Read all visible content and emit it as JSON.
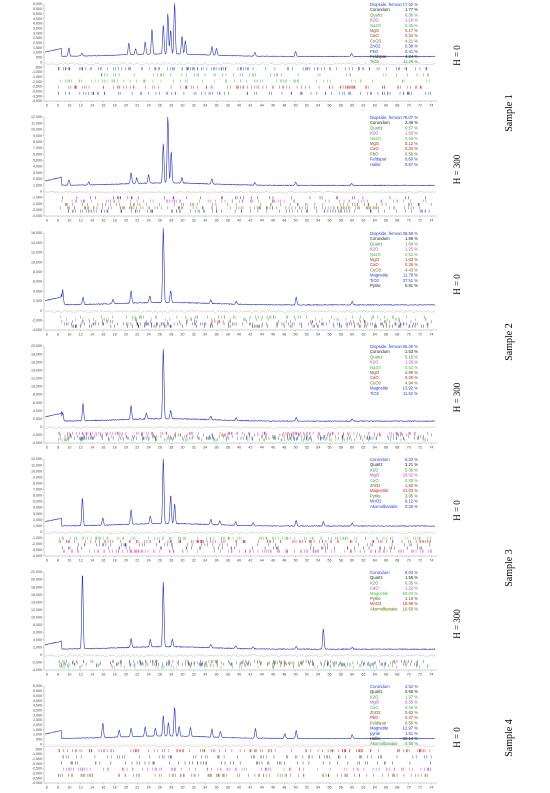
{
  "figure": {
    "sample_labels": [
      "Sample 1",
      "Sample 2",
      "Sample 3",
      "Sample 4"
    ],
    "h_labels": [
      "H = 0",
      "H = 300",
      "H = 0",
      "H = 300",
      "H = 0",
      "H = 300",
      "H = 0"
    ]
  },
  "colors": {
    "pattern": "#2233cc",
    "axis": "#777777",
    "phase_palette": [
      "#1f3fd6",
      "#222222",
      "#2e9e2e",
      "#d62ad6",
      "#3cc03c",
      "#7a4a1a",
      "#cc2222",
      "#6a6a00",
      "#2233cc"
    ]
  },
  "chart_data": [
    {
      "type": "line",
      "h": "H = 0",
      "sample": "Sample 1",
      "ytick_labels": [
        "6,000",
        "5,500",
        "5,000",
        "4,500",
        "4,000",
        "3,500",
        "3,000",
        "2,500",
        "2,000",
        "1,500",
        "1,000",
        "500",
        "0",
        "-500",
        "-1,000",
        "-1,500",
        "-2,000",
        "-2,500",
        "-3,000",
        "-3,500",
        "-4,000"
      ],
      "xtick_labels": [
        "6",
        "8",
        "10",
        "12",
        "14",
        "16",
        "18",
        "20",
        "22",
        "24",
        "26",
        "28",
        "30",
        "32",
        "34",
        "36",
        "38",
        "40",
        "42",
        "44",
        "46",
        "48",
        "50",
        "52",
        "54",
        "56",
        "58",
        "60",
        "62",
        "64",
        "66",
        "68",
        "70",
        "72",
        "74"
      ],
      "peaks_x": [
        9.9,
        12.2,
        20.5,
        21.7,
        23.4,
        24.6,
        26.6,
        27.4,
        27.9,
        28.6,
        29.9,
        30.5,
        35.2,
        36.0,
        42.8,
        50.0,
        59.9
      ],
      "peaks_y": [
        900,
        300,
        1200,
        600,
        1300,
        2600,
        3000,
        4200,
        2500,
        5300,
        1900,
        1400,
        900,
        700,
        400,
        500,
        300
      ],
      "legend": [
        [
          "Diopside, ferroan",
          "17.52 %"
        ],
        [
          "Corundum",
          "1.77 %"
        ],
        [
          "Quartz",
          "6.36 %"
        ],
        [
          "K2O",
          "1.16 %"
        ],
        [
          "Na2O",
          "0.45 %"
        ],
        [
          "MgO",
          "0.17 %"
        ],
        [
          "CaO",
          "0.34 %"
        ],
        [
          "CuO3",
          "4.21 %"
        ],
        [
          "ZnO2",
          "0.39 %"
        ],
        [
          "PbO",
          "0.41 %"
        ],
        [
          "Feldspar",
          "4.24 %"
        ],
        [
          "TiO2",
          "11.26 %"
        ]
      ]
    },
    {
      "type": "line",
      "h": "H = 300",
      "sample": "Sample 1",
      "ytick_labels": [
        "12,000",
        "11,000",
        "10,000",
        "9,000",
        "8,000",
        "7,000",
        "6,000",
        "5,000",
        "4,000",
        "3,000",
        "2,000",
        "1,000",
        "0",
        "-1,000",
        "-2,000",
        "-3,000",
        "-4,000"
      ],
      "xtick_labels": [
        "6",
        "8",
        "10",
        "12",
        "14",
        "16",
        "18",
        "20",
        "22",
        "24",
        "26",
        "28",
        "30",
        "32",
        "34",
        "36",
        "38",
        "40",
        "42",
        "44",
        "46",
        "48",
        "50",
        "52",
        "54",
        "56",
        "58",
        "60",
        "62",
        "64",
        "66",
        "68",
        "70",
        "72",
        "74"
      ],
      "peaks_x": [
        9.9,
        13.4,
        20.9,
        21.9,
        24.0,
        26.6,
        27.4,
        28.0,
        29.9,
        35.2,
        42.8,
        50.0,
        59.9
      ],
      "peaks_y": [
        900,
        500,
        1800,
        900,
        1400,
        6400,
        10800,
        5100,
        900,
        800,
        400,
        500,
        300
      ],
      "legend": [
        [
          "Diopside, ferroan",
          "78.07 %"
        ],
        [
          "Corundum",
          "2.48 %"
        ],
        [
          "Quartz",
          "0.57 %"
        ],
        [
          "K2O",
          "1.93 %"
        ],
        [
          "Na2O",
          "0.55 %"
        ],
        [
          "MgO",
          "0.12 %"
        ],
        [
          "CaO",
          "0.33 %"
        ],
        [
          "PbO",
          "0.56 %"
        ],
        [
          "Feldspar",
          "0.60 %"
        ],
        [
          "Halite",
          "0.57 %"
        ]
      ]
    },
    {
      "type": "line",
      "h": "H = 0",
      "sample": "Sample 2",
      "ytick_labels": [
        "16,000",
        "14,000",
        "12,000",
        "10,000",
        "8,000",
        "6,000",
        "4,000",
        "2,000",
        "0",
        "-2,000",
        "-4,000"
      ],
      "xtick_labels": [
        "6",
        "8",
        "10",
        "12",
        "14",
        "16",
        "18",
        "20",
        "22",
        "24",
        "26",
        "28",
        "30",
        "32",
        "34",
        "36",
        "38",
        "40",
        "42",
        "44",
        "46",
        "48",
        "50",
        "52",
        "54",
        "56",
        "58",
        "60",
        "62",
        "64",
        "66",
        "68",
        "70",
        "72",
        "74"
      ],
      "peaks_x": [
        8.8,
        12.4,
        17.7,
        20.9,
        24.2,
        26.6,
        27.9,
        35.0,
        39.5,
        50.1,
        60.0
      ],
      "peaks_y": [
        3200,
        1500,
        900,
        2600,
        1400,
        15500,
        2400,
        700,
        600,
        1600,
        700
      ],
      "legend": [
        [
          "Diopside, ferroan",
          "38.58 %"
        ],
        [
          "Corundum",
          "1.88 %"
        ],
        [
          "Quartz",
          "1.69 %"
        ],
        [
          "K2O",
          "1.25 %"
        ],
        [
          "Na2O",
          "0.52 %"
        ],
        [
          "MgO",
          "1.03 %"
        ],
        [
          "CaO",
          "0.26 %"
        ],
        [
          "CuO3",
          "4.43 %"
        ],
        [
          "Magnetite",
          "11.78 %"
        ],
        [
          "TiO2",
          "37.51 %"
        ],
        [
          "Pyrite",
          "0.81 %"
        ]
      ]
    },
    {
      "type": "line",
      "h": "H = 300",
      "sample": "Sample 2",
      "ytick_labels": [
        "20,000",
        "18,000",
        "16,000",
        "14,000",
        "12,000",
        "10,000",
        "8,000",
        "6,000",
        "4,000",
        "2,000",
        "0",
        "-2,000",
        "-4,000"
      ],
      "xtick_labels": [
        "6",
        "8",
        "10",
        "12",
        "14",
        "16",
        "18",
        "20",
        "22",
        "24",
        "26",
        "28",
        "30",
        "32",
        "34",
        "36",
        "38",
        "40",
        "42",
        "44",
        "46",
        "48",
        "50",
        "52",
        "54",
        "56",
        "58",
        "60",
        "62",
        "64",
        "66",
        "68",
        "70",
        "72",
        "74"
      ],
      "peaks_x": [
        8.8,
        12.4,
        20.9,
        23.6,
        26.6,
        27.9,
        35.0,
        39.5,
        50.1,
        60.0
      ],
      "peaks_y": [
        2200,
        4300,
        3400,
        1400,
        17500,
        2000,
        900,
        700,
        900,
        600
      ],
      "legend": [
        [
          "Diopside, ferroan",
          "65.30 %"
        ],
        [
          "Corundum",
          "1.53 %"
        ],
        [
          "Quartz",
          "5.15 %"
        ],
        [
          "K2O",
          "1.26 %"
        ],
        [
          "Na2O",
          "0.52 %"
        ],
        [
          "MgO",
          "2.86 %"
        ],
        [
          "CaO",
          "0.26 %"
        ],
        [
          "CuO3",
          "4.94 %"
        ],
        [
          "Magnetite",
          "13.92 %"
        ],
        [
          "TiO2",
          "11.52 %"
        ]
      ]
    },
    {
      "type": "line",
      "h": "H = 0",
      "sample": "Sample 3",
      "ytick_labels": [
        "12,000",
        "11,000",
        "10,000",
        "9,000",
        "8,000",
        "7,000",
        "6,000",
        "5,000",
        "4,000",
        "3,000",
        "2,000",
        "1,000",
        "0",
        "-1,000",
        "-2,000",
        "-3,000",
        "-4,000"
      ],
      "xtick_labels": [
        "6",
        "8",
        "10",
        "12",
        "14",
        "16",
        "18",
        "20",
        "22",
        "24",
        "26",
        "28",
        "30",
        "32",
        "34",
        "36",
        "38",
        "40",
        "42",
        "44",
        "46",
        "48",
        "50",
        "52",
        "54",
        "56",
        "58",
        "60",
        "62",
        "64",
        "66",
        "68",
        "70",
        "72",
        "74"
      ],
      "peaks_x": [
        12.3,
        15.9,
        20.9,
        24.3,
        26.6,
        27.9,
        28.6,
        35.0,
        36.6,
        39.4,
        42.5,
        50.1,
        54.9,
        60.0
      ],
      "peaks_y": [
        4700,
        1200,
        2400,
        1300,
        10800,
        4800,
        3300,
        900,
        700,
        600,
        500,
        900,
        700,
        500
      ],
      "legend": [
        [
          "Corundum",
          "6.33 %"
        ],
        [
          "Quartz",
          "3.21 %"
        ],
        [
          "K2O",
          "5.36 %"
        ],
        [
          "MgO",
          "29.02 %"
        ],
        [
          "CaO",
          "0.89 %"
        ],
        [
          "ZnO2",
          "1.82 %"
        ],
        [
          "Magnetite",
          "41.03 %"
        ],
        [
          "Pyrite",
          "3.95 %"
        ],
        [
          "MnO2",
          "9.12 %"
        ],
        [
          "Akomolbanaite",
          "0.26 %"
        ]
      ]
    },
    {
      "type": "line",
      "h": "H = 300",
      "sample": "Sample 3",
      "ytick_labels": [
        "22,000",
        "20,000",
        "18,000",
        "16,000",
        "14,000",
        "12,000",
        "10,000",
        "8,000",
        "6,000",
        "4,000",
        "2,000",
        "0",
        "-2,000",
        "-4,000"
      ],
      "xtick_labels": [
        "6",
        "8",
        "10",
        "12",
        "14",
        "16",
        "18",
        "20",
        "22",
        "24",
        "26",
        "28",
        "30",
        "32",
        "34",
        "36",
        "38",
        "40",
        "42",
        "44",
        "46",
        "48",
        "50",
        "52",
        "54",
        "56",
        "58",
        "60",
        "62",
        "64",
        "66",
        "68",
        "70",
        "72",
        "74"
      ],
      "peaks_x": [
        12.3,
        20.9,
        24.3,
        26.6,
        28.2,
        35.0,
        39.4,
        42.5,
        50.1,
        54.9,
        60.0
      ],
      "peaks_y": [
        20500,
        2300,
        2000,
        17500,
        2000,
        900,
        700,
        600,
        700,
        5500,
        500
      ],
      "legend": [
        [
          "Corundum",
          "8.04 %"
        ],
        [
          "Quartz",
          "1.55 %"
        ],
        [
          "K2O",
          "6.35 %"
        ],
        [
          "CaO",
          "1.22 %"
        ],
        [
          "Magnetite",
          "60.03 %"
        ],
        [
          "Pyrite",
          "4.16 %"
        ],
        [
          "MnO2",
          "18.99 %"
        ],
        [
          "Akomolbanaite",
          "10.50 %"
        ]
      ]
    },
    {
      "type": "line",
      "h": "H = 0",
      "sample": "Sample 4",
      "ytick_labels": [
        "6,000",
        "5,500",
        "5,000",
        "4,500",
        "4,000",
        "3,500",
        "3,000",
        "2,500",
        "2,000",
        "1,500",
        "1,000",
        "500",
        "0",
        "-500",
        "-1,000",
        "-1,500",
        "-2,000",
        "-2,500",
        "-3,000",
        "-3,500",
        "-4,000"
      ],
      "xtick_labels": [
        "6",
        "8",
        "10",
        "12",
        "14",
        "16",
        "18",
        "20",
        "22",
        "24",
        "26",
        "28",
        "30",
        "32",
        "34",
        "36",
        "38",
        "40",
        "42",
        "44",
        "46",
        "48",
        "50",
        "52",
        "54",
        "56",
        "58",
        "60",
        "62",
        "64",
        "66",
        "68",
        "70",
        "72",
        "74"
      ],
      "peaks_x": [
        15.9,
        18.8,
        20.9,
        23.4,
        25.2,
        26.6,
        27.5,
        28.6,
        29.4,
        31.4,
        35.2,
        36.7,
        42.9,
        48.1,
        50.1,
        60.0
      ],
      "peaks_y": [
        1500,
        700,
        900,
        1000,
        800,
        2100,
        1400,
        3000,
        1000,
        900,
        800,
        600,
        1000,
        500,
        800,
        400
      ],
      "legend": [
        [
          "Corundum",
          "2.52 %"
        ],
        [
          "Quartz",
          "0.65 %"
        ],
        [
          "K2O",
          "1.37 %"
        ],
        [
          "MgO",
          "0.35 %"
        ],
        [
          "CaO",
          "0.36 %"
        ],
        [
          "ZnO2",
          "0.63 %"
        ],
        [
          "PbO",
          "0.47 %"
        ],
        [
          "Feldspar",
          "0.50 %"
        ],
        [
          "Magnetite",
          "12.97 %"
        ],
        [
          "pyrite",
          "1.61 %"
        ],
        [
          "Halite",
          "68.14 %"
        ],
        [
          "Akomolbanaite",
          "0.56 %"
        ]
      ]
    }
  ]
}
